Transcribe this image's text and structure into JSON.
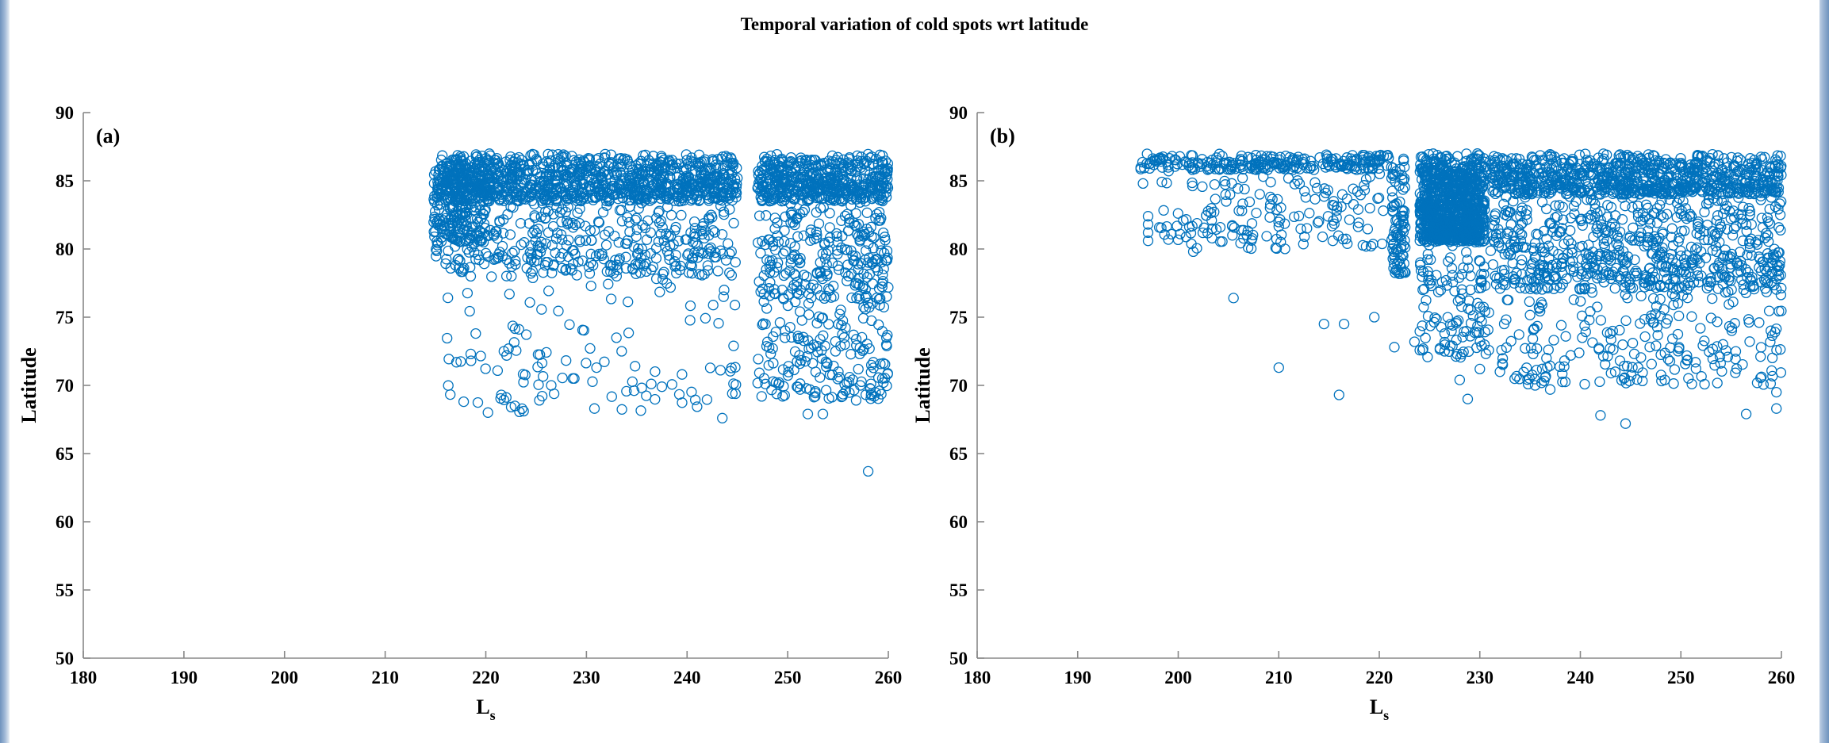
{
  "figure_title": "Temporal variation of cold spots wrt latitude",
  "chart_data": [
    {
      "type": "scatter",
      "panel_label": "(a)",
      "xlabel": "L",
      "xlabel_subscript": "s",
      "ylabel": "Latitude",
      "xlim": [
        180,
        260
      ],
      "ylim": [
        50,
        90
      ],
      "xticks": [
        180,
        190,
        200,
        210,
        220,
        230,
        240,
        250,
        260
      ],
      "yticks": [
        50,
        55,
        60,
        65,
        70,
        75,
        80,
        85,
        90
      ],
      "marker": "open-circle",
      "color": "#0072BD",
      "clusters": [
        {
          "x_range": [
            214.8,
            220
          ],
          "y_range": [
            80.5,
            87
          ],
          "count": 200
        },
        {
          "x_range": [
            215,
            245
          ],
          "y_range": [
            83.5,
            87
          ],
          "count": 1000
        },
        {
          "x_range": [
            215,
            245
          ],
          "y_range": [
            78,
            83.5
          ],
          "count": 350
        },
        {
          "x_range": [
            216,
            245
          ],
          "y_range": [
            68,
            78
          ],
          "count": 110
        },
        {
          "x_range": [
            247,
            260
          ],
          "y_range": [
            83.5,
            87
          ],
          "count": 480
        },
        {
          "x_range": [
            247,
            260
          ],
          "y_range": [
            76,
            83.5
          ],
          "count": 250
        },
        {
          "x_range": [
            247,
            260
          ],
          "y_range": [
            69,
            76
          ],
          "count": 170
        }
      ],
      "points": [
        [
          217.8,
          68.8
        ],
        [
          221.8,
          72.5
        ],
        [
          230.8,
          68.3
        ],
        [
          231.0,
          71.3
        ],
        [
          218.5,
          72.3
        ],
        [
          219.0,
          73.8
        ],
        [
          226.5,
          70.0
        ],
        [
          243.5,
          67.6
        ],
        [
          244.5,
          69.4
        ],
        [
          249.5,
          69.2
        ],
        [
          252.0,
          67.9
        ],
        [
          253.5,
          67.9
        ],
        [
          256.8,
          68.9
        ],
        [
          258.0,
          63.7
        ],
        [
          259.5,
          70.2
        ],
        [
          218.5,
          78.0
        ],
        [
          217.0,
          78.8
        ],
        [
          237.5,
          69.9
        ],
        [
          233.5,
          72.5
        ],
        [
          239.5,
          70.8
        ]
      ]
    },
    {
      "type": "scatter",
      "panel_label": "(b)",
      "xlabel": "L",
      "xlabel_subscript": "s",
      "ylabel": "Latitude",
      "xlim": [
        180,
        260
      ],
      "ylim": [
        50,
        90
      ],
      "xticks": [
        180,
        190,
        200,
        210,
        220,
        230,
        240,
        250,
        260
      ],
      "yticks": [
        50,
        55,
        60,
        65,
        70,
        75,
        80,
        85,
        90
      ],
      "marker": "open-circle",
      "color": "#0072BD",
      "clusters": [
        {
          "x_range": [
            196,
            221
          ],
          "y_range": [
            85.8,
            87
          ],
          "count": 240
        },
        {
          "x_range": [
            198,
            221
          ],
          "y_range": [
            80,
            85.8
          ],
          "count": 160
        },
        {
          "x_range": [
            221.2,
            222.6
          ],
          "y_range": [
            78,
            87
          ],
          "count": 90
        },
        {
          "x_range": [
            224,
            230.5
          ],
          "y_range": [
            80.5,
            87
          ],
          "count": 900
        },
        {
          "x_range": [
            224,
            231
          ],
          "y_range": [
            72,
            80.5
          ],
          "count": 120
        },
        {
          "x_range": [
            231,
            260
          ],
          "y_range": [
            84,
            87
          ],
          "count": 800
        },
        {
          "x_range": [
            231,
            260
          ],
          "y_range": [
            77,
            84
          ],
          "count": 650
        },
        {
          "x_range": [
            232,
            260
          ],
          "y_range": [
            70,
            77
          ],
          "count": 220
        }
      ],
      "points": [
        [
          197.0,
          82.4
        ],
        [
          197.0,
          81.8
        ],
        [
          197.0,
          81.2
        ],
        [
          197.0,
          80.6
        ],
        [
          196.5,
          84.8
        ],
        [
          201.5,
          79.8
        ],
        [
          205.5,
          76.4
        ],
        [
          210.0,
          71.3
        ],
        [
          214.5,
          74.5
        ],
        [
          216.0,
          69.3
        ],
        [
          216.5,
          74.5
        ],
        [
          219.5,
          75.0
        ],
        [
          221.5,
          72.8
        ],
        [
          228.0,
          70.4
        ],
        [
          228.8,
          69.0
        ],
        [
          230.0,
          71.2
        ],
        [
          232.0,
          71.0
        ],
        [
          235.5,
          70.0
        ],
        [
          237.0,
          69.7
        ],
        [
          242.0,
          67.8
        ],
        [
          244.5,
          67.2
        ],
        [
          256.5,
          67.9
        ],
        [
          259.5,
          68.3
        ],
        [
          259.5,
          69.5
        ],
        [
          223.5,
          73.2
        ],
        [
          226.5,
          73.8
        ]
      ]
    }
  ]
}
